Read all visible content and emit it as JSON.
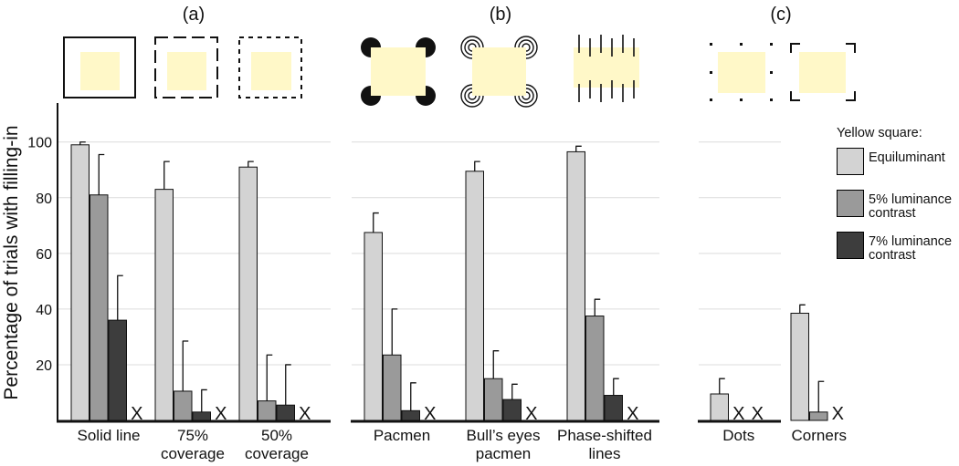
{
  "chart_data": [
    {
      "type": "bar",
      "title": "(a)",
      "ylabel": "Percentage of trials with filling-in",
      "legend_title": "Yellow square:",
      "legend": "right",
      "missing_label": "X",
      "categories": [
        [
          "Solid line"
        ],
        [
          "75%",
          "coverage"
        ],
        [
          "50%",
          "coverage"
        ]
      ],
      "series": [
        {
          "name": "Equiluminant",
          "color": "#d3d3d3",
          "values": [
            99,
            83,
            91
          ],
          "errors": [
            1,
            10,
            2
          ]
        },
        {
          "name": "5% luminance contrast",
          "color": "#9a9a9a",
          "values": [
            81,
            10.5,
            7
          ],
          "errors": [
            14.5,
            18,
            16.5
          ]
        },
        {
          "name": "7% luminance contrast",
          "color": "#3d3d3d",
          "values": [
            36,
            3,
            5.5
          ],
          "errors": [
            16,
            8,
            14.5
          ]
        },
        {
          "name": null,
          "color": null,
          "values": [
            null,
            null,
            null
          ],
          "errors": [
            null,
            null,
            null
          ]
        }
      ],
      "ylim": [
        0,
        114
      ],
      "yticks": [
        20,
        40,
        60,
        80,
        100
      ],
      "tick_labels": true,
      "grid": true
    },
    {
      "type": "bar",
      "title": "(b)",
      "missing_label": "X",
      "categories": [
        [
          "Pacmen"
        ],
        [
          "Bull’s eyes",
          "pacmen"
        ],
        [
          "Phase-shifted",
          "lines"
        ]
      ],
      "series": [
        {
          "name": "Equiluminant",
          "color": "#d3d3d3",
          "values": [
            67.5,
            89.5,
            96.5
          ],
          "errors": [
            7,
            3.5,
            2
          ]
        },
        {
          "name": "5% luminance contrast",
          "color": "#9a9a9a",
          "values": [
            23.5,
            15,
            37.5
          ],
          "errors": [
            16.5,
            10,
            6
          ]
        },
        {
          "name": "7% luminance contrast",
          "color": "#3d3d3d",
          "values": [
            3.5,
            7.5,
            9
          ],
          "errors": [
            10,
            5.5,
            6
          ]
        },
        {
          "name": null,
          "color": null,
          "values": [
            null,
            null,
            null
          ],
          "errors": [
            null,
            null,
            null
          ]
        }
      ],
      "ylim": [
        0,
        114
      ],
      "yticks": [
        20,
        40,
        60,
        80,
        100
      ],
      "tick_labels": false,
      "grid": true
    },
    {
      "type": "bar",
      "title": "(c)",
      "missing_label": "X",
      "categories": [
        [
          "Dots"
        ],
        [
          "Corners"
        ]
      ],
      "series": [
        {
          "name": "Equiluminant",
          "color": "#d3d3d3",
          "values": [
            9.5,
            38.5
          ],
          "errors": [
            5.5,
            3
          ]
        },
        {
          "name": "5% luminance contrast",
          "color": "#9a9a9a",
          "values": [
            null,
            3
          ],
          "errors": [
            null,
            11
          ]
        },
        {
          "name": "7% luminance contrast",
          "color": "#3d3d3d",
          "values": [
            null,
            null
          ],
          "errors": [
            null,
            null
          ]
        }
      ],
      "ylim": [
        0,
        114
      ],
      "yticks": [
        20,
        40,
        60,
        80,
        100
      ],
      "tick_labels": false,
      "grid": true
    }
  ]
}
